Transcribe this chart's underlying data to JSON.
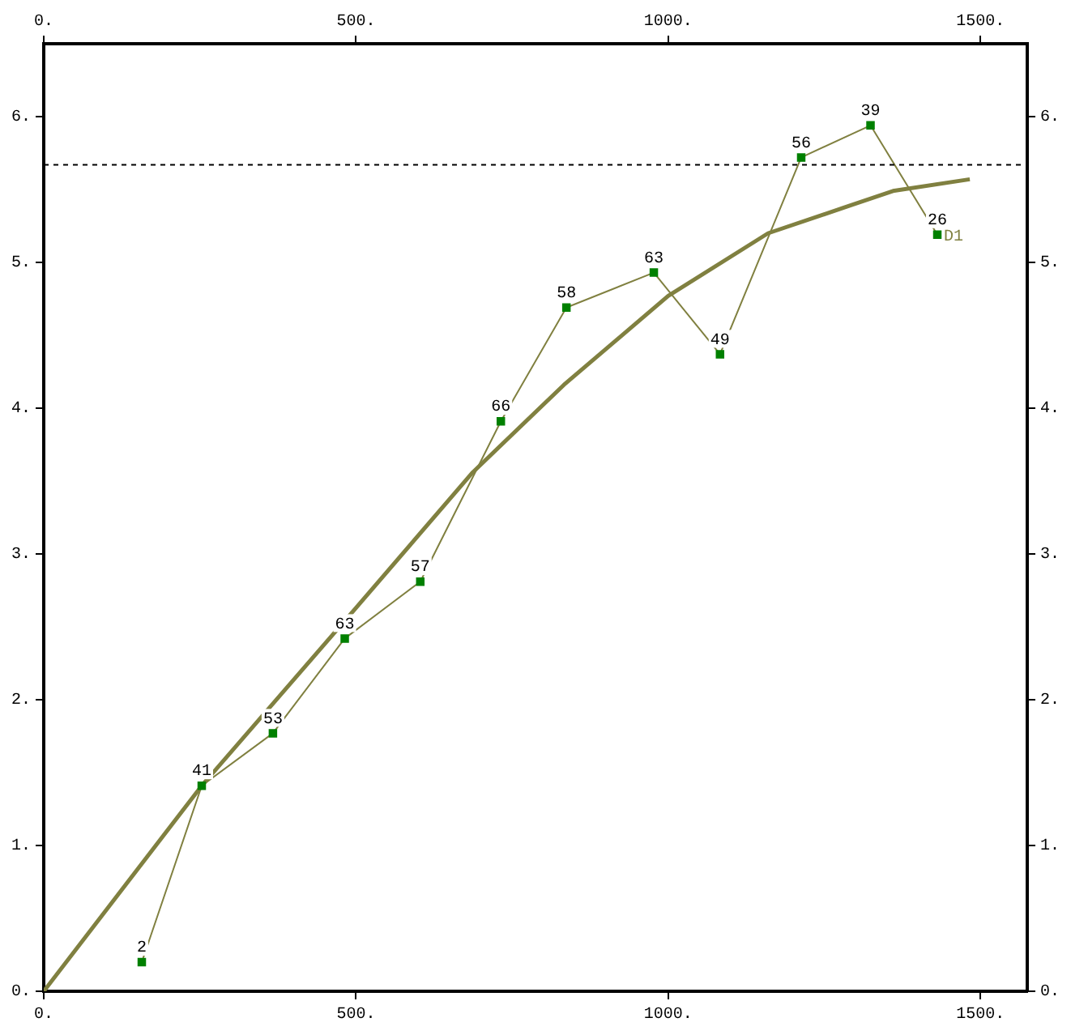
{
  "chart_data": {
    "type": "scatter",
    "xlim": [
      0,
      1575
    ],
    "xticks": [
      {
        "value": 0,
        "label": "0."
      },
      {
        "value": 500,
        "label": "500."
      },
      {
        "value": 1000,
        "label": "1000."
      },
      {
        "value": 1500,
        "label": "1500."
      }
    ],
    "x2lim": [
      0,
      1575
    ],
    "x2ticks": [
      {
        "value": 0,
        "label": "0."
      },
      {
        "value": 500,
        "label": "500."
      },
      {
        "value": 1000,
        "label": "1000."
      },
      {
        "value": 1500,
        "label": "1500."
      }
    ],
    "ylim": [
      0,
      6.5
    ],
    "yticks": [
      {
        "value": 0,
        "label": "0."
      },
      {
        "value": 1,
        "label": "1."
      },
      {
        "value": 2,
        "label": "2."
      },
      {
        "value": 3,
        "label": "3."
      },
      {
        "value": 4,
        "label": "4."
      },
      {
        "value": 5,
        "label": "5."
      },
      {
        "value": 6,
        "label": "6."
      }
    ],
    "y2lim": [
      0,
      6.5
    ],
    "y2ticks": [
      {
        "value": 0,
        "label": "0."
      },
      {
        "value": 1,
        "label": "1."
      },
      {
        "value": 2,
        "label": "2."
      },
      {
        "value": 3,
        "label": "3."
      },
      {
        "value": 4,
        "label": "4."
      },
      {
        "value": 5,
        "label": "5."
      },
      {
        "value": 6,
        "label": "6."
      }
    ],
    "grid": false,
    "legend": false,
    "series": [
      {
        "name": "D1",
        "type": "line",
        "marker": "square",
        "color": "#808040",
        "colors": [
          "#008000",
          "#008000",
          "#008000",
          "#008000",
          "#008000",
          "#008000",
          "#008000",
          "#008000",
          "#008000",
          "#008000",
          "#008000",
          "#008000"
        ],
        "x": [
          157,
          253,
          367,
          482,
          603,
          732,
          837,
          977,
          1083,
          1213,
          1324,
          1431
        ],
        "values": [
          0.2,
          1.41,
          1.77,
          2.42,
          2.81,
          3.91,
          4.69,
          4.93,
          4.37,
          5.72,
          5.94,
          5.19
        ]
      },
      {
        "type": "line",
        "marker": "none",
        "color": "#808040",
        "x": [
          0,
          253,
          500,
          687,
          833,
          1000,
          1160,
          1360,
          1483
        ],
        "values": [
          0,
          1.41,
          2.63,
          3.56,
          4.16,
          4.77,
          5.2,
          5.49,
          5.57
        ]
      }
    ],
    "annotations": [
      {
        "text": "2",
        "x": 157,
        "y": 0.2
      },
      {
        "text": "41",
        "x": 253,
        "y": 1.41
      },
      {
        "text": "53",
        "x": 367,
        "y": 1.77
      },
      {
        "text": "63",
        "x": 482,
        "y": 2.42
      },
      {
        "text": "57",
        "x": 603,
        "y": 2.81
      },
      {
        "text": "66",
        "x": 732,
        "y": 3.91
      },
      {
        "text": "58",
        "x": 837,
        "y": 4.69
      },
      {
        "text": "63",
        "x": 977,
        "y": 4.93
      },
      {
        "text": "49",
        "x": 1083,
        "y": 4.37
      },
      {
        "text": "56",
        "x": 1213,
        "y": 5.72
      },
      {
        "text": "39",
        "x": 1324,
        "y": 5.94
      },
      {
        "text": "26",
        "x": 1431,
        "y": 5.19
      }
    ],
    "ref_lines": [
      {
        "axis": "y",
        "value": 5.67,
        "color": "#000000",
        "line_style": "dashed"
      }
    ]
  }
}
